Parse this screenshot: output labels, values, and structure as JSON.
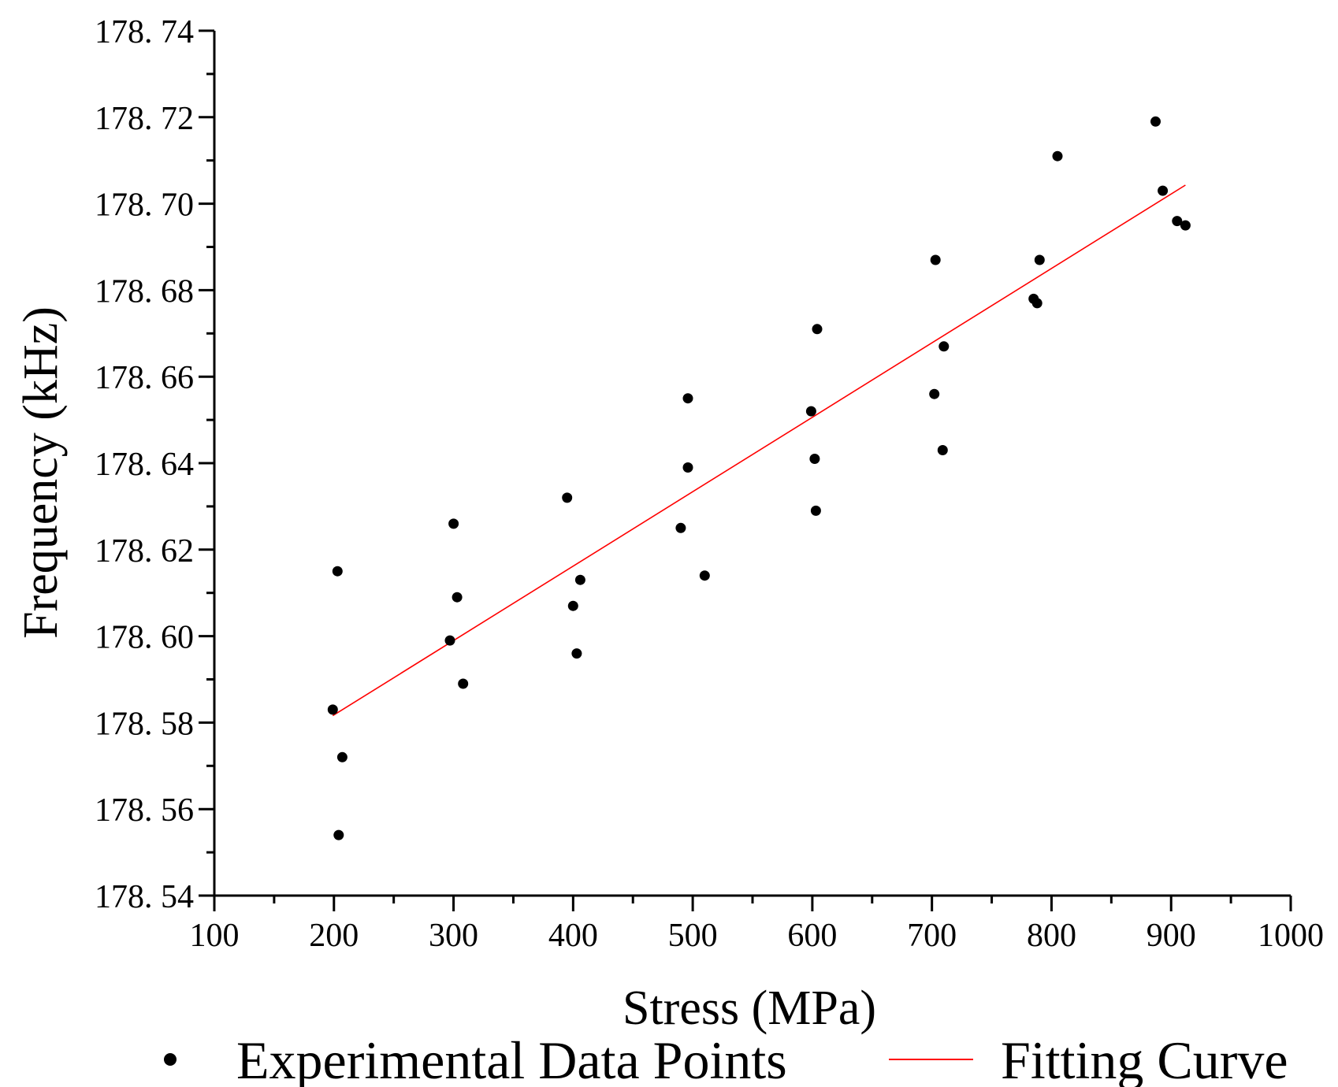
{
  "chart_data": {
    "type": "scatter",
    "title": "",
    "xlabel": "Stress (MPa)",
    "ylabel": "Frequency (kHz)",
    "xlim": [
      100,
      1000
    ],
    "ylim": [
      178.54,
      178.74
    ],
    "x_ticks": [
      100,
      200,
      300,
      400,
      500,
      600,
      700,
      800,
      900,
      1000
    ],
    "x_tick_labels": [
      "100",
      "200",
      "300",
      "400",
      "500",
      "600",
      "700",
      "800",
      "900",
      "1000"
    ],
    "y_ticks": [
      178.54,
      178.56,
      178.58,
      178.6,
      178.62,
      178.64,
      178.66,
      178.68,
      178.7,
      178.72,
      178.74
    ],
    "y_tick_labels": [
      "178. 54",
      "178. 56",
      "178. 58",
      "178. 60",
      "178. 62",
      "178. 64",
      "178. 66",
      "178. 68",
      "178. 70",
      "178. 72",
      "178. 74"
    ],
    "grid": false,
    "legend_position": "bottom",
    "series": [
      {
        "name": "Experimental Data Points",
        "kind": "scatter",
        "color": "#000000",
        "points": [
          [
            199,
            178.583
          ],
          [
            203,
            178.615
          ],
          [
            204,
            178.554
          ],
          [
            207,
            178.572
          ],
          [
            297,
            178.599
          ],
          [
            300,
            178.626
          ],
          [
            303,
            178.609
          ],
          [
            308,
            178.589
          ],
          [
            395,
            178.632
          ],
          [
            400,
            178.607
          ],
          [
            403,
            178.596
          ],
          [
            406,
            178.613
          ],
          [
            490,
            178.625
          ],
          [
            496,
            178.655
          ],
          [
            496,
            178.639
          ],
          [
            510,
            178.614
          ],
          [
            599,
            178.652
          ],
          [
            602,
            178.641
          ],
          [
            603,
            178.629
          ],
          [
            604,
            178.671
          ],
          [
            702,
            178.656
          ],
          [
            703,
            178.687
          ],
          [
            709,
            178.643
          ],
          [
            710,
            178.667
          ],
          [
            785,
            178.678
          ],
          [
            788,
            178.677
          ],
          [
            790,
            178.687
          ],
          [
            805,
            178.711
          ],
          [
            887,
            178.719
          ],
          [
            893,
            178.703
          ],
          [
            905,
            178.696
          ],
          [
            912,
            178.695
          ]
        ]
      },
      {
        "name": "Fitting Curve",
        "kind": "line",
        "color": "#ff0000",
        "points": [
          [
            199,
            178.5816
          ],
          [
            912,
            178.7043
          ]
        ]
      }
    ]
  }
}
